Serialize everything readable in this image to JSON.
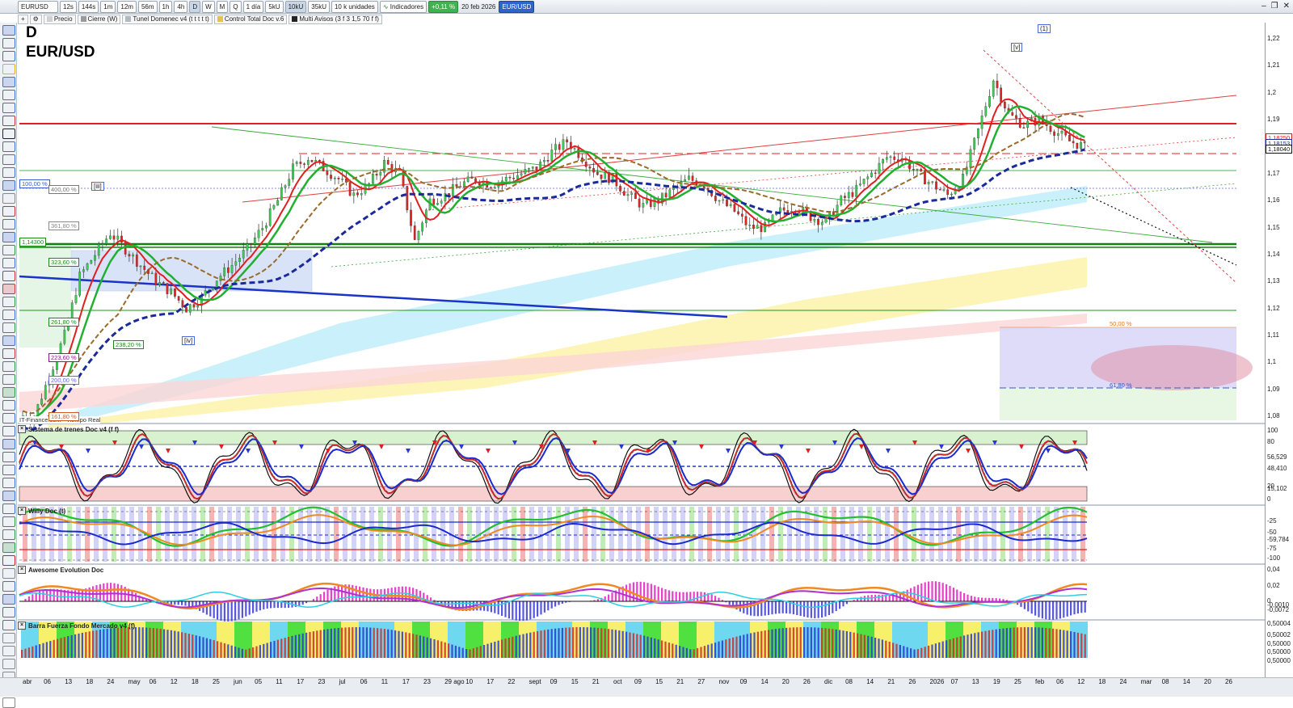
{
  "toolbar": {
    "symbol": "EURUSD",
    "periods": [
      "12s",
      "144s",
      "1m",
      "12m",
      "56m",
      "1h",
      "4h",
      "D",
      "W",
      "M",
      "Q"
    ],
    "active_period": "D",
    "timeframe_select": "1 día",
    "units": [
      "5kU",
      "10kU",
      "35kU"
    ],
    "active_units": "10kU",
    "units_select": "10 k unidades",
    "indicators_label": "Indicadores",
    "change_badge": "+0,11 %",
    "date": "20 feb 2026",
    "instrument_badge": "EUR/USD"
  },
  "indicators_bar": [
    {
      "label": "Precio",
      "color": "#d0d0d0"
    },
    {
      "label": "Cierre (W)",
      "color": "#9a9a9a"
    },
    {
      "label": "Tunel Domenec v4 (t t t t t)",
      "color": "#b0b8c0"
    },
    {
      "label": "Control Total Doc v.6",
      "color": "#e6c24a"
    },
    {
      "label": "Multi Avisos (3 f 3 1,5 70 f f)",
      "color": "#222222"
    }
  ],
  "chart_header": {
    "period": "D",
    "pair": "EUR/USD"
  },
  "source_label": "IT-Finance.com - Tiempo Real",
  "price_axis": [
    "1,22",
    "1,21",
    "1,2",
    "1,19",
    "1,18",
    "1,17",
    "1,16",
    "1,15",
    "1,14",
    "1,13",
    "1,12",
    "1,11",
    "1,1",
    "1,09",
    "1,08"
  ],
  "price_tags": [
    {
      "label": "1,18250",
      "color": "#d62020"
    },
    {
      "label": "1,18153",
      "color": "#1c2d9c"
    },
    {
      "label": "1,18040",
      "color": "#111111"
    }
  ],
  "level_tags": [
    {
      "label": "1,14300",
      "color": "#1a8a1a"
    }
  ],
  "fib_labels": [
    {
      "label": "100,00 %",
      "color": "#3a5ac9"
    },
    {
      "label": "400,00 %",
      "color": "#777777"
    },
    {
      "label": "361,80 %",
      "color": "#888888"
    },
    {
      "label": "323,60 %",
      "color": "#1a8a1a"
    },
    {
      "label": "261,80 %",
      "color": "#1a8a1a"
    },
    {
      "label": "238,20 %",
      "color": "#1a8a1a"
    },
    {
      "label": "223,60 %",
      "color": "#8a1a8a"
    },
    {
      "label": "200,00 %",
      "color": "#6a6ad0"
    },
    {
      "label": "161,80 %",
      "color": "#d05a20"
    },
    {
      "label": "50,00 %",
      "color": "#e07a2a"
    },
    {
      "label": "61,80 %",
      "color": "#3a5ac9"
    }
  ],
  "wave_labels": [
    "(1)",
    "[v]",
    "[iii]",
    "[iv]"
  ],
  "x_axis": [
    "abr",
    "06",
    "13",
    "18",
    "24",
    "may",
    "06",
    "12",
    "18",
    "25",
    "jun",
    "05",
    "11",
    "17",
    "23",
    "jul",
    "06",
    "11",
    "17",
    "23",
    "29 ago",
    "10",
    "17",
    "22",
    "sept",
    "09",
    "15",
    "21",
    "oct",
    "09",
    "15",
    "21",
    "27",
    "nov",
    "09",
    "14",
    "20",
    "26",
    "dic",
    "08",
    "14",
    "21",
    "26",
    "2026",
    "07",
    "13",
    "19",
    "25",
    "feb",
    "06",
    "12",
    "18",
    "24",
    "mar",
    "08",
    "14",
    "20",
    "26"
  ],
  "panels": [
    {
      "title": "Sistema de trenes Doc v4 (f f)",
      "axis": [
        "100",
        "80",
        "56,529",
        "48,410",
        "20",
        "15,102",
        "0"
      ]
    },
    {
      "title": "Willy Doc (t)",
      "axis": [
        "-25",
        "-50",
        "-59,784",
        "-75",
        "-100"
      ]
    },
    {
      "title": "Awesome Evolution Doc",
      "axis": [
        "0,04",
        "0,02",
        "0",
        "-0,0010",
        "-0,0072"
      ]
    },
    {
      "title": "Barra Fuerza Fondo Mercado v4 (f)",
      "axis": [
        "0,50004",
        "0,50002",
        "0,50000",
        "0,50000",
        "0,50000"
      ]
    }
  ],
  "chart_data": {
    "type": "candlestick",
    "pair": "EUR/USD",
    "timeframe": "D",
    "ylim": [
      1.075,
      1.225
    ],
    "close": [
      1.08,
      1.095,
      1.11,
      1.132,
      1.14,
      1.148,
      1.142,
      1.136,
      1.13,
      1.126,
      1.12,
      1.124,
      1.131,
      1.136,
      1.142,
      1.15,
      1.16,
      1.172,
      1.176,
      1.172,
      1.168,
      1.162,
      1.166,
      1.174,
      1.17,
      1.145,
      1.16,
      1.162,
      1.166,
      1.168,
      1.166,
      1.168,
      1.17,
      1.172,
      1.178,
      1.182,
      1.176,
      1.17,
      1.168,
      1.162,
      1.158,
      1.16,
      1.164,
      1.168,
      1.166,
      1.16,
      1.156,
      1.15,
      1.15,
      1.156,
      1.158,
      1.154,
      1.152,
      1.16,
      1.164,
      1.17,
      1.176,
      1.176,
      1.17,
      1.166,
      1.162,
      1.168,
      1.186,
      1.205,
      1.192,
      1.188,
      1.19,
      1.186,
      1.182,
      1.18
    ]
  }
}
